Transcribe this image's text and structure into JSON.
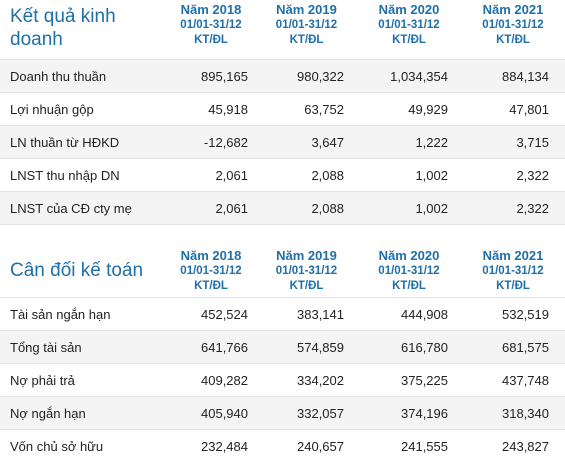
{
  "sections": [
    {
      "title_line1": "Kết quả kinh",
      "title_line2": "doanh",
      "years": [
        {
          "year": "Năm 2018",
          "range": "01/01-31/12",
          "unit": "KT/ĐL"
        },
        {
          "year": "Năm 2019",
          "range": "01/01-31/12",
          "unit": "KT/ĐL"
        },
        {
          "year": "Năm 2020",
          "range": "01/01-31/12",
          "unit": "KT/ĐL"
        },
        {
          "year": "Năm 2021",
          "range": "01/01-31/12",
          "unit": "KT/ĐL"
        }
      ],
      "rows": [
        {
          "label": "Doanh thu thuần",
          "values": [
            "895,165",
            "980,322",
            "1,034,354",
            "884,134"
          ]
        },
        {
          "label": "Lợi nhuận gộp",
          "values": [
            "45,918",
            "63,752",
            "49,929",
            "47,801"
          ]
        },
        {
          "label": "LN thuần từ HĐKD",
          "values": [
            "-12,682",
            "3,647",
            "1,222",
            "3,715"
          ]
        },
        {
          "label": "LNST thu nhập DN",
          "values": [
            "2,061",
            "2,088",
            "1,002",
            "2,322"
          ]
        },
        {
          "label": "LNST của CĐ cty mẹ",
          "values": [
            "2,061",
            "2,088",
            "1,002",
            "2,322"
          ]
        }
      ]
    },
    {
      "title_line1": "Cân đối kế toán",
      "title_line2": "",
      "years": [
        {
          "year": "Năm 2018",
          "range": "01/01-31/12",
          "unit": "KT/ĐL"
        },
        {
          "year": "Năm 2019",
          "range": "01/01-31/12",
          "unit": "KT/ĐL"
        },
        {
          "year": "Năm 2020",
          "range": "01/01-31/12",
          "unit": "KT/ĐL"
        },
        {
          "year": "Năm 2021",
          "range": "01/01-31/12",
          "unit": "KT/ĐL"
        }
      ],
      "rows": [
        {
          "label": "Tài sản ngắn hạn",
          "values": [
            "452,524",
            "383,141",
            "444,908",
            "532,519"
          ]
        },
        {
          "label": "Tổng tài sản",
          "values": [
            "641,766",
            "574,859",
            "616,780",
            "681,575"
          ]
        },
        {
          "label": "Nợ phải trả",
          "values": [
            "409,282",
            "334,202",
            "375,225",
            "437,748"
          ]
        },
        {
          "label": "Nợ ngắn hạn",
          "values": [
            "405,940",
            "332,057",
            "374,196",
            "318,340"
          ]
        },
        {
          "label": "Vốn chủ sở hữu",
          "values": [
            "232,484",
            "240,657",
            "241,555",
            "243,827"
          ]
        }
      ]
    }
  ],
  "colors": {
    "accent": "#1f6fa8",
    "row_stripe": "#f4f4f4",
    "border": "#e3e3e3"
  }
}
